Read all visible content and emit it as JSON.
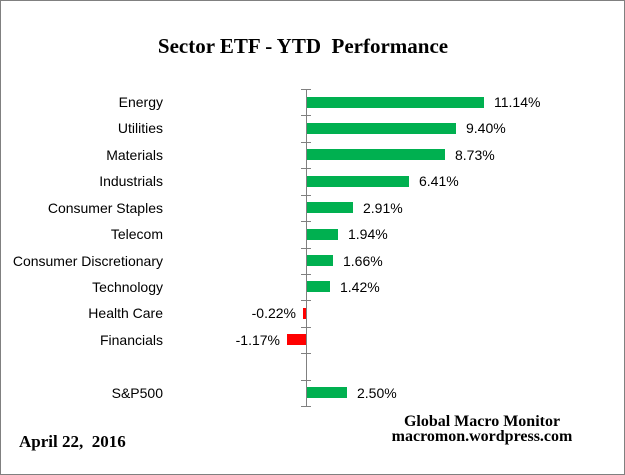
{
  "title": "Sector ETF - YTD  Performance",
  "chart_data": {
    "type": "bar",
    "orientation": "horizontal",
    "title": "Sector ETF - YTD  Performance",
    "value_unit": "percent",
    "categories": [
      "Energy",
      "Utilities",
      "Materials",
      "Industrials",
      "Consumer Staples",
      "Telecom",
      "Consumer Discretionary",
      "Technology",
      "Health Care",
      "Financials",
      "",
      "S&P500"
    ],
    "rows": [
      {
        "label": "Energy",
        "value": 11.14,
        "display": "11.14%"
      },
      {
        "label": "Utilities",
        "value": 9.4,
        "display": "9.40%"
      },
      {
        "label": "Materials",
        "value": 8.73,
        "display": "8.73%"
      },
      {
        "label": "Industrials",
        "value": 6.41,
        "display": "6.41%"
      },
      {
        "label": "Consumer Staples",
        "value": 2.91,
        "display": "2.91%"
      },
      {
        "label": "Telecom",
        "value": 1.94,
        "display": "1.94%"
      },
      {
        "label": "Consumer Discretionary",
        "value": 1.66,
        "display": "1.66%"
      },
      {
        "label": "Technology",
        "value": 1.42,
        "display": "1.42%"
      },
      {
        "label": "Health Care",
        "value": -0.22,
        "display": "-0.22%"
      },
      {
        "label": "Financials",
        "value": -1.17,
        "display": "-1.17%"
      },
      {
        "label": "",
        "value": null,
        "display": ""
      },
      {
        "label": "S&P500",
        "value": 2.5,
        "display": "2.50%"
      }
    ],
    "positive_color": "#00B050",
    "negative_color": "#FF0000",
    "axis_color": "#808080",
    "grid": false,
    "legend": false,
    "value_labels": true
  },
  "footer": {
    "date": "April 22,  2016",
    "credit_line1": "Global Macro Monitor",
    "credit_line2": "macromon.wordpress.com"
  }
}
